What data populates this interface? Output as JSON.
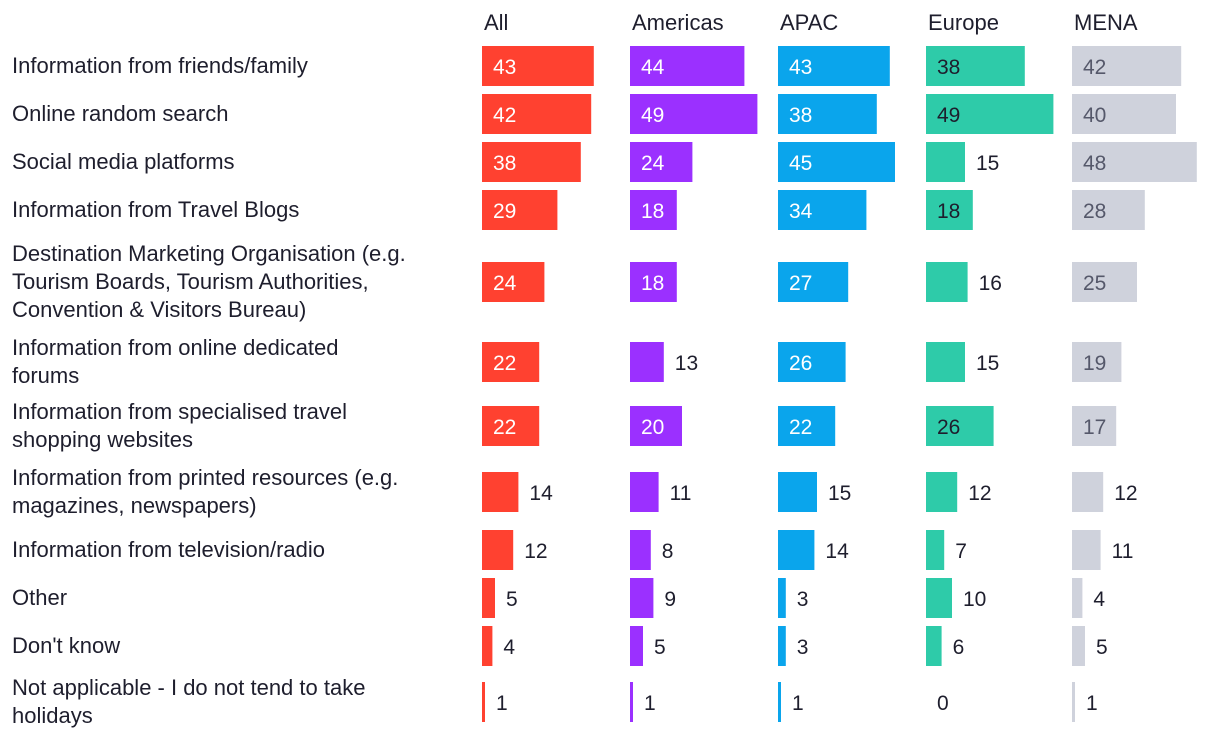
{
  "chart_data": {
    "type": "bar",
    "orientation": "horizontal",
    "layout": "small-multiples",
    "categories": [
      [
        "Information from friends/family"
      ],
      [
        "Online random search"
      ],
      [
        "Social media platforms"
      ],
      [
        "Information from Travel Blogs"
      ],
      [
        "Destination Marketing Organisation (e.g.",
        "Tourism Boards, Tourism Authorities,",
        "Convention & Visitors Bureau)"
      ],
      [
        "Information from online dedicated",
        "forums"
      ],
      [
        "Information from specialised travel",
        "shopping websites"
      ],
      [
        "Information from printed resources (e.g.",
        "magazines, newspapers)"
      ],
      [
        "Information from television/radio"
      ],
      [
        "Other"
      ],
      [
        "Don't know"
      ],
      [
        "Not applicable - I do not tend to take",
        "holidays"
      ]
    ],
    "series": [
      {
        "name": "All",
        "color": "#ff4130",
        "label_color": "#ffffff",
        "values": [
          43,
          42,
          38,
          29,
          24,
          22,
          22,
          14,
          12,
          5,
          4,
          1
        ]
      },
      {
        "name": "Americas",
        "color": "#9b30ff",
        "label_color": "#ffffff",
        "values": [
          44,
          49,
          24,
          18,
          18,
          13,
          20,
          11,
          8,
          9,
          5,
          1
        ]
      },
      {
        "name": "APAC",
        "color": "#0aa5ec",
        "label_color": "#ffffff",
        "values": [
          43,
          38,
          45,
          34,
          27,
          26,
          22,
          15,
          14,
          3,
          3,
          1
        ]
      },
      {
        "name": "Europe",
        "color": "#2ecba9",
        "label_color": "#1e1e2d",
        "values": [
          38,
          49,
          15,
          18,
          16,
          15,
          26,
          12,
          7,
          10,
          6,
          0
        ]
      },
      {
        "name": "MENA",
        "color": "#cfd2dc",
        "label_color": "#55586a",
        "values": [
          42,
          40,
          48,
          28,
          25,
          19,
          17,
          12,
          11,
          4,
          5,
          1
        ]
      }
    ],
    "xlim": [
      0,
      50
    ],
    "grid": false,
    "legend": "none"
  }
}
